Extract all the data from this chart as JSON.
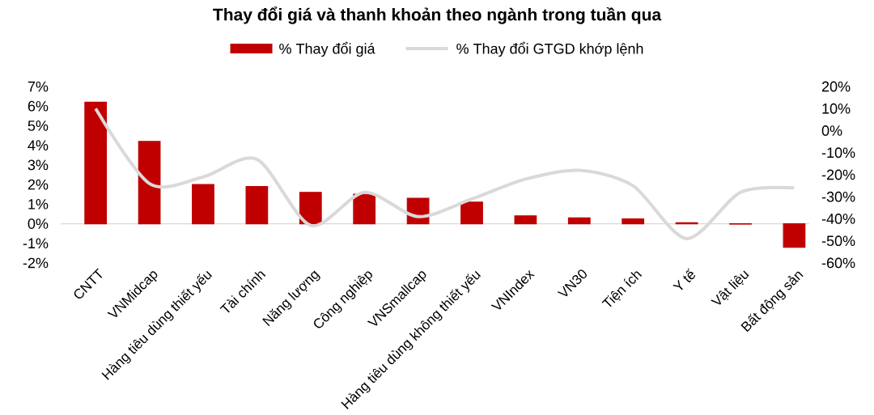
{
  "chart_data": {
    "type": "bar",
    "title": "Thay đổi giá và thanh khoản theo ngành trong tuần qua",
    "categories": [
      "CNTT",
      "VNMidcap",
      "Hàng tiêu dùng thiết yếu",
      "Tài chính",
      "Năng lượng",
      "Công nghiệp",
      "VNSmallcap",
      "Hàng tiêu dùng không thiết yếu",
      "VNIndex",
      "VN30",
      "Tiện ích",
      "Y tế",
      "Vật liệu",
      "Bất động sản"
    ],
    "series": [
      {
        "name": "% Thay đổi giá",
        "color": "#c00000",
        "values": [
          6.2,
          4.2,
          2.0,
          1.9,
          1.6,
          1.5,
          1.3,
          1.1,
          0.4,
          0.3,
          0.25,
          0.05,
          -0.02,
          -1.2
        ]
      },
      {
        "name": "% Thay đổi GTGD khớp lệnh",
        "type": "line",
        "axis": "y2",
        "color": "#d9d9d9",
        "values": [
          10,
          -24,
          -21,
          -13,
          -43,
          -28,
          -39,
          -31,
          -22,
          -18,
          -25,
          -49,
          -28,
          -26
        ]
      }
    ],
    "ylim": [
      -2,
      7
    ],
    "yticks": [
      {
        "value": -2,
        "label": "-2%"
      },
      {
        "value": -1,
        "label": "-1%"
      },
      {
        "value": 0,
        "label": "0%"
      },
      {
        "value": 1,
        "label": "1%"
      },
      {
        "value": 2,
        "label": "2%"
      },
      {
        "value": 3,
        "label": "3%"
      },
      {
        "value": 4,
        "label": "4%"
      },
      {
        "value": 5,
        "label": "5%"
      },
      {
        "value": 6,
        "label": "6%"
      },
      {
        "value": 7,
        "label": "7%"
      }
    ],
    "y2lim": [
      -60,
      20
    ],
    "y2ticks": [
      {
        "value": -60,
        "label": "-60%"
      },
      {
        "value": -50,
        "label": "-50%"
      },
      {
        "value": -40,
        "label": "-40%"
      },
      {
        "value": -30,
        "label": "-30%"
      },
      {
        "value": -20,
        "label": "-20%"
      },
      {
        "value": -10,
        "label": "-10%"
      },
      {
        "value": 0,
        "label": "0%"
      },
      {
        "value": 10,
        "label": "10%"
      },
      {
        "value": 20,
        "label": "20%"
      }
    ],
    "legend": "top",
    "marker": "none",
    "line_style": "solid"
  }
}
